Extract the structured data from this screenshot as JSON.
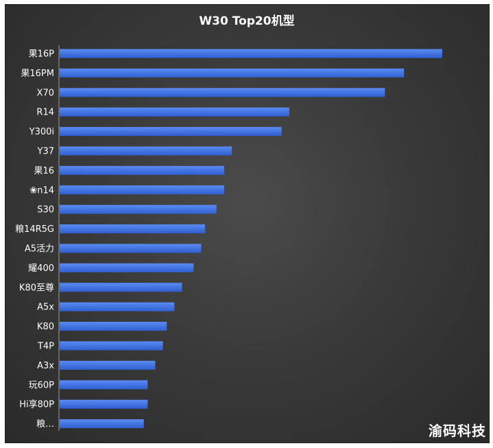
{
  "chart_data": {
    "type": "bar",
    "orientation": "horizontal",
    "title": "W30 Top20机型",
    "categories": [
      "果16P",
      "果16PM",
      "X70",
      "R14",
      "Y300i",
      "Y37",
      "果16",
      "❀n14",
      "S30",
      "粮14R5G",
      "A5活力",
      "耀400",
      "K80至尊",
      "A5x",
      "K80",
      "T4P",
      "A3x",
      "玩60P",
      "Hi享80P",
      "粮…"
    ],
    "values": [
      100,
      90,
      85,
      60,
      58,
      45,
      43,
      43,
      41,
      38,
      37,
      35,
      32,
      30,
      28,
      27,
      25,
      23,
      23,
      22
    ],
    "xlim": [
      0,
      100
    ],
    "bar_color": "#3d6ee0",
    "grid": false,
    "legend": "none"
  },
  "watermark": "渝码科技"
}
